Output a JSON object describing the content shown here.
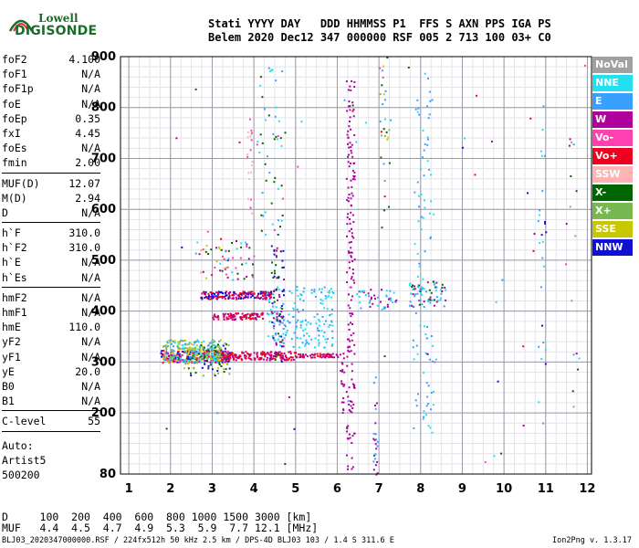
{
  "logo": {
    "line1": "Lowell",
    "line2": "DIGISONDE"
  },
  "header": {
    "line1": "Stati YYYY DAY   DDD HHMMSS P1  FFS S AXN PPS IGA PS",
    "line2": "Belem 2020 Dec12 347 000000 RSF 005 2 713 100 03+ C0"
  },
  "params": [
    {
      "k": "foF2",
      "v": "4.100"
    },
    {
      "k": "foF1",
      "v": "N/A"
    },
    {
      "k": "foF1p",
      "v": "N/A"
    },
    {
      "k": "foE",
      "v": "N/A"
    },
    {
      "k": "foEp",
      "v": "0.35"
    },
    {
      "k": "fxI",
      "v": "4.45"
    },
    {
      "k": "foEs",
      "v": "N/A"
    },
    {
      "k": "fmin",
      "v": "2.00"
    },
    {
      "sep": true
    },
    {
      "k": "MUF(D)",
      "v": "12.07"
    },
    {
      "k": "M(D)",
      "v": "2.94"
    },
    {
      "k": "D",
      "v": "N/A"
    },
    {
      "sep": true
    },
    {
      "k": "h`F",
      "v": "310.0"
    },
    {
      "k": "h`F2",
      "v": "310.0"
    },
    {
      "k": "h`E",
      "v": "N/A"
    },
    {
      "k": "h`Es",
      "v": "N/A"
    },
    {
      "sep": true
    },
    {
      "k": "hmF2",
      "v": "N/A"
    },
    {
      "k": "hmF1",
      "v": "N/A"
    },
    {
      "k": "hmE",
      "v": "110.0"
    },
    {
      "k": "yF2",
      "v": "N/A"
    },
    {
      "k": "yF1",
      "v": "N/A"
    },
    {
      "k": "yE",
      "v": "20.0"
    },
    {
      "k": "B0",
      "v": "N/A"
    },
    {
      "k": "B1",
      "v": "N/A"
    },
    {
      "sep": true
    },
    {
      "k": "C-level",
      "v": "55"
    },
    {
      "sep": true
    }
  ],
  "auto": {
    "line1": "Auto:",
    "line2": "Artist5",
    "line3": "500200"
  },
  "legend": [
    {
      "label": "NoVal",
      "color": "#a0a0a0"
    },
    {
      "label": "NNE",
      "color": "#22e0f0"
    },
    {
      "label": "E",
      "color": "#3aa0ff"
    },
    {
      "label": "W",
      "color": "#b0009c"
    },
    {
      "label": "Vo-",
      "color": "#ff40b0"
    },
    {
      "label": "Vo+",
      "color": "#f00020"
    },
    {
      "label": "SSW",
      "color": "#ffb4b4"
    },
    {
      "label": "X-",
      "color": "#006400"
    },
    {
      "label": "X+",
      "color": "#78b850"
    },
    {
      "label": "SSE",
      "color": "#c8c800"
    },
    {
      "label": "NNW",
      "color": "#1010d0"
    }
  ],
  "dmuf": {
    "dline": "D     100  200  400  600  800 1000 1500 3000 [km]",
    "mline": "MUF   4.4  4.5  4.7  4.9  5.3  5.9  7.7 12.1 [MHz]"
  },
  "footer": "BLJ03_2020347000000.RSF / 224fx512h 50 kHz 2.5 km / DPS-4D BLJ03 103 / 1.4 S 311.6 E",
  "version": "Ion2Png v. 1.3.17",
  "chart_data": {
    "type": "scatter",
    "xlim": [
      0.8,
      12.1
    ],
    "ylim": [
      80,
      900
    ],
    "x_ticks": [
      1,
      2,
      3,
      4,
      5,
      6,
      7,
      8,
      9,
      10,
      11,
      12
    ],
    "y_ticks": [
      80,
      200,
      300,
      400,
      500,
      600,
      700,
      800,
      900
    ],
    "x_tick_labels": [
      "1",
      "2",
      "3",
      "4",
      "5",
      "6",
      "7",
      "8",
      "9",
      "10",
      "11",
      "12"
    ],
    "y_tick_labels": [
      "80",
      "200",
      "300",
      "400",
      "500",
      "600",
      "700",
      "800",
      "900"
    ],
    "grid": true,
    "legend_position": "right",
    "clusters": [
      {
        "x0": 1.75,
        "x1": 3.4,
        "y0": 300,
        "y1": 325,
        "n": 260,
        "colors": [
          "#b0009c",
          "#b0009c",
          "#f00020",
          "#006400",
          "#1010d0",
          "#ff40b0"
        ]
      },
      {
        "x0": 1.8,
        "x1": 3.2,
        "y0": 300,
        "y1": 345,
        "n": 240,
        "colors": [
          "#22e0f0",
          "#3aa0ff",
          "#c8c800",
          "#78b850"
        ]
      },
      {
        "x0": 3.2,
        "x1": 5.0,
        "y0": 305,
        "y1": 322,
        "n": 170,
        "colors": [
          "#b0009c",
          "#f00020"
        ]
      },
      {
        "x0": 5.0,
        "x1": 6.0,
        "y0": 310,
        "y1": 318,
        "n": 60,
        "colors": [
          "#b0009c",
          "#f00020"
        ]
      },
      {
        "x0": 2.7,
        "x1": 4.4,
        "y0": 425,
        "y1": 440,
        "n": 170,
        "colors": [
          "#b0009c",
          "#f00020",
          "#1010d0"
        ]
      },
      {
        "x0": 3.0,
        "x1": 4.2,
        "y0": 385,
        "y1": 398,
        "n": 90,
        "colors": [
          "#b0009c",
          "#f00020"
        ]
      },
      {
        "x0": 2.3,
        "x1": 3.4,
        "y0": 275,
        "y1": 340,
        "n": 80,
        "colors": [
          "#006400",
          "#c8c800",
          "#78b850",
          "#1010d0"
        ]
      },
      {
        "x0": 4.3,
        "x1": 5.9,
        "y0": 330,
        "y1": 450,
        "n": 170,
        "colors": [
          "#22e0f0",
          "#3aa0ff"
        ]
      },
      {
        "x0": 4.4,
        "x1": 4.7,
        "y0": 300,
        "y1": 530,
        "n": 70,
        "colors": [
          "#b0009c",
          "#1010d0",
          "#006400"
        ]
      },
      {
        "x0": 6.5,
        "x1": 7.4,
        "y0": 405,
        "y1": 445,
        "n": 45,
        "colors": [
          "#22e0f0",
          "#3aa0ff",
          "#b0009c"
        ]
      },
      {
        "x0": 7.7,
        "x1": 8.6,
        "y0": 410,
        "y1": 460,
        "n": 70,
        "colors": [
          "#22e0f0",
          "#3aa0ff",
          "#b0009c",
          "#006400"
        ]
      },
      {
        "x0": 7.8,
        "x1": 8.3,
        "y0": 150,
        "y1": 890,
        "n": 90,
        "colors": [
          "#22e0f0",
          "#3aa0ff"
        ]
      },
      {
        "x0": 6.2,
        "x1": 6.4,
        "y0": 90,
        "y1": 860,
        "n": 160,
        "colors": [
          "#b0009c"
        ]
      },
      {
        "x0": 6.05,
        "x1": 6.15,
        "y0": 190,
        "y1": 320,
        "n": 20,
        "colors": [
          "#b0009c"
        ]
      },
      {
        "x0": 6.85,
        "x1": 6.95,
        "y0": 80,
        "y1": 300,
        "n": 25,
        "colors": [
          "#b0009c",
          "#3aa0ff"
        ]
      },
      {
        "x0": 4.0,
        "x1": 4.7,
        "y0": 550,
        "y1": 900,
        "n": 45,
        "colors": [
          "#22e0f0",
          "#3aa0ff",
          "#006400"
        ]
      },
      {
        "x0": 2.6,
        "x1": 4.0,
        "y0": 460,
        "y1": 540,
        "n": 60,
        "colors": [
          "#22e0f0",
          "#b0009c",
          "#006400",
          "#ff40b0",
          "#c8c800"
        ]
      },
      {
        "x0": 3.8,
        "x1": 3.95,
        "y0": 560,
        "y1": 800,
        "n": 20,
        "colors": [
          "#ffb4b4",
          "#ff40b0"
        ]
      },
      {
        "x0": 7.0,
        "x1": 7.3,
        "y0": 520,
        "y1": 900,
        "n": 25,
        "colors": [
          "#006400",
          "#c8c800",
          "#78b850",
          "#3aa0ff"
        ]
      },
      {
        "x0": 10.8,
        "x1": 11.0,
        "y0": 80,
        "y1": 900,
        "n": 25,
        "colors": [
          "#22e0f0",
          "#3aa0ff",
          "#1010d0"
        ]
      },
      {
        "x0": 11.5,
        "x1": 11.8,
        "y0": 200,
        "y1": 760,
        "n": 12,
        "colors": [
          "#006400",
          "#b0009c",
          "#78b850"
        ]
      },
      {
        "x0": 1.8,
        "x1": 12.0,
        "y0": 80,
        "y1": 900,
        "n": 70,
        "colors": [
          "#22e0f0",
          "#3aa0ff",
          "#b0009c",
          "#006400",
          "#ff40b0",
          "#1010d0",
          "#f00020"
        ]
      }
    ]
  }
}
